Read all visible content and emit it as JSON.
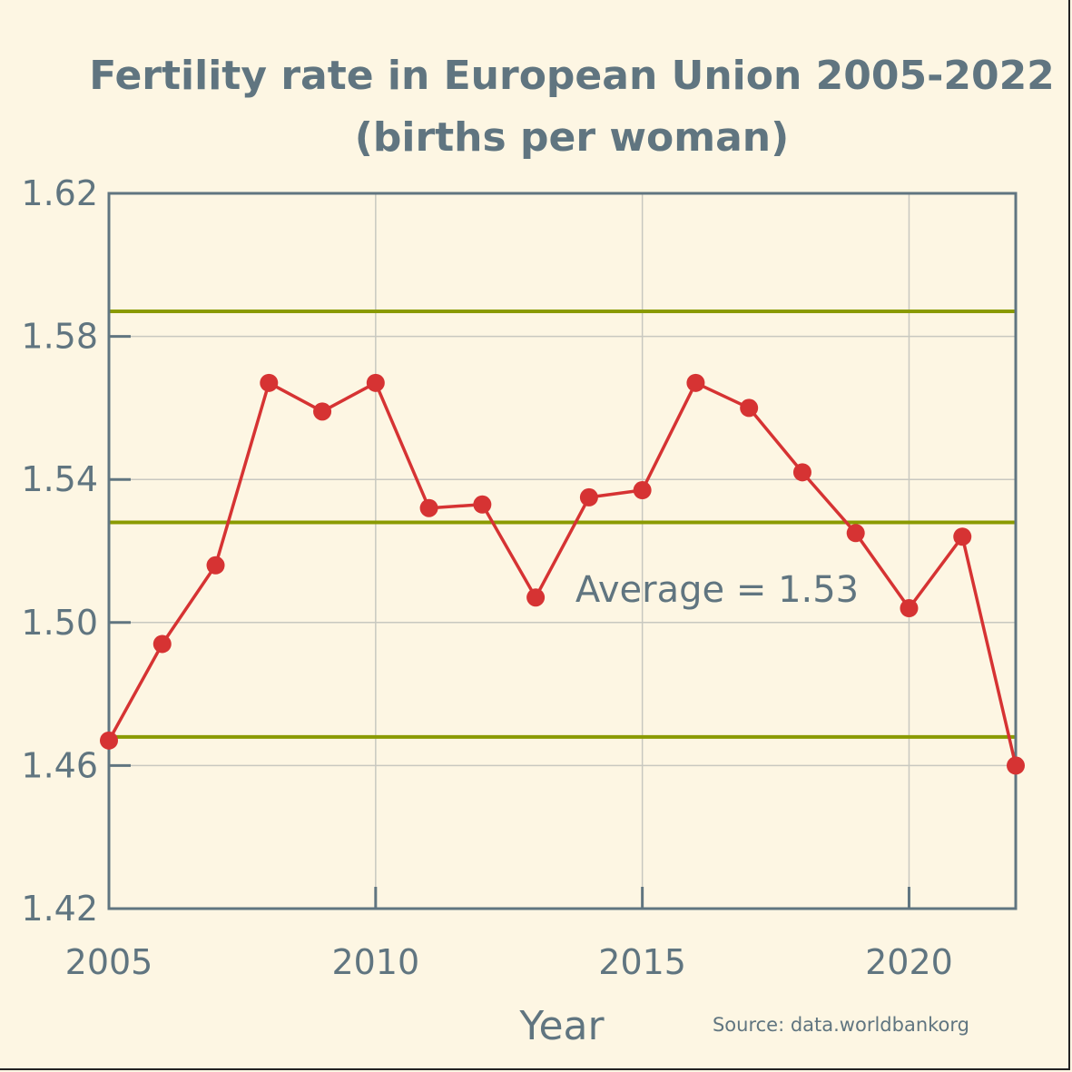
{
  "chart_data": {
    "type": "line",
    "title_line1": "Fertility rate in European Union 2005-2022",
    "title_line2": "(births per woman)",
    "xlabel": "Year",
    "ylabel": "",
    "xlim": [
      2005,
      2022
    ],
    "ylim": [
      1.42,
      1.62
    ],
    "x_ticks": [
      "2005",
      "2010",
      "2015",
      "2020"
    ],
    "y_ticks": [
      "1.42",
      "1.46",
      "1.50",
      "1.54",
      "1.58",
      "1.62"
    ],
    "grid": true,
    "x": [
      2005,
      2006,
      2007,
      2008,
      2009,
      2010,
      2011,
      2012,
      2013,
      2014,
      2015,
      2016,
      2017,
      2018,
      2019,
      2020,
      2021,
      2022
    ],
    "values": [
      1.467,
      1.494,
      1.516,
      1.567,
      1.559,
      1.567,
      1.532,
      1.533,
      1.507,
      1.535,
      1.537,
      1.567,
      1.56,
      1.542,
      1.525,
      1.504,
      1.524,
      1.46
    ],
    "reference_lines": [
      1.587,
      1.528,
      1.468
    ],
    "annotation": "Average = 1.53",
    "source": "Source: data.worldbankorg",
    "colors": {
      "line": "#d63333",
      "reference": "#8a9a00",
      "axis": "#607580",
      "grid": "#c8c8c0",
      "background": "#fdf6e3"
    }
  }
}
